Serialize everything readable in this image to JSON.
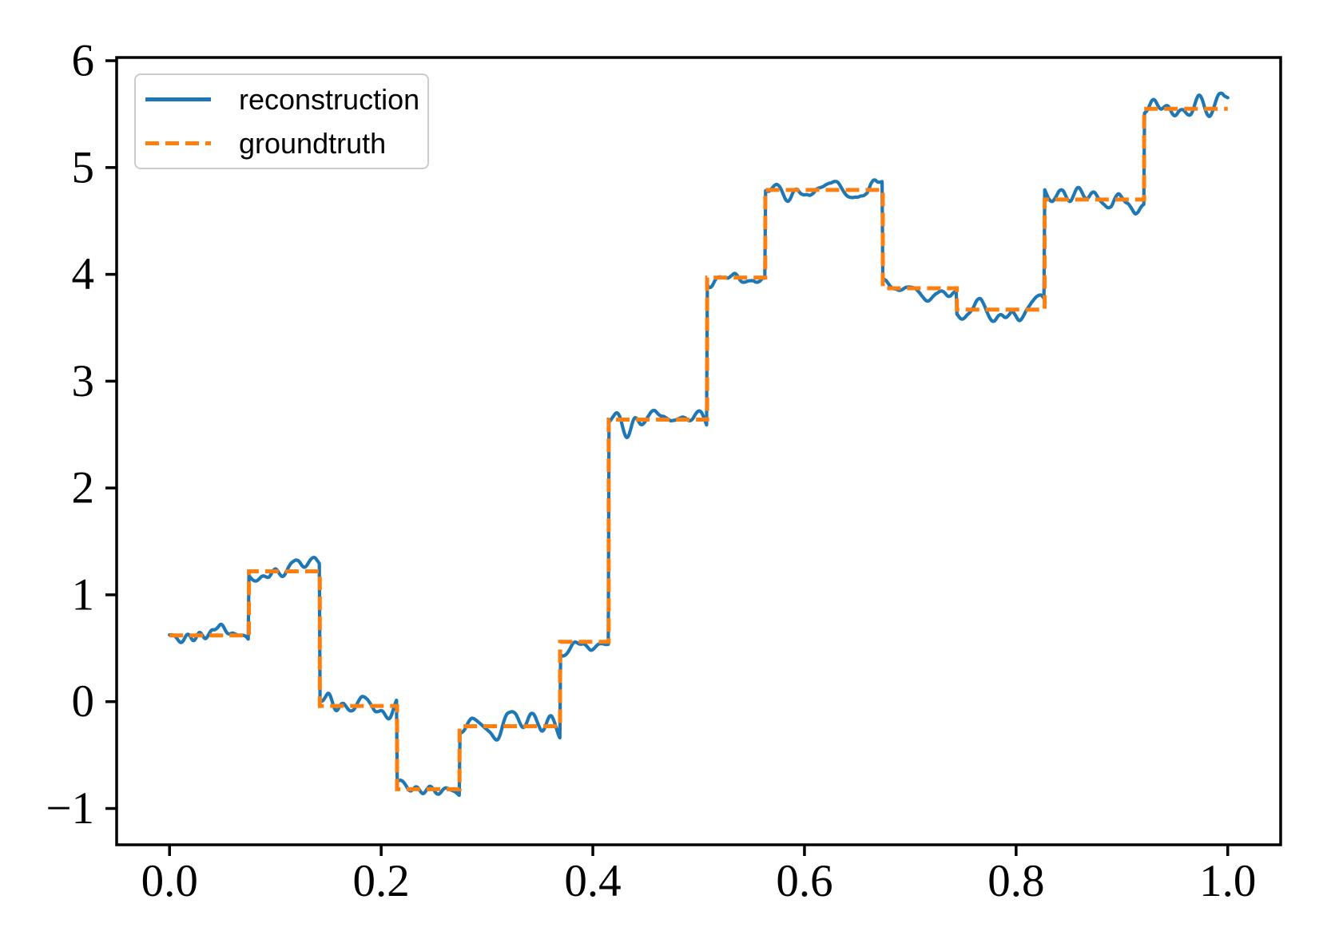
{
  "figure": {
    "background": "#ffffff"
  },
  "chart_data": {
    "type": "line",
    "title": "",
    "xlabel": "",
    "ylabel": "",
    "grid": false,
    "xlim": [
      -0.05,
      1.05
    ],
    "ylim": [
      -1.34,
      6.03
    ],
    "x_ticks": [
      0.0,
      0.2,
      0.4,
      0.6,
      0.8,
      1.0
    ],
    "x_tick_labels": [
      "0.0",
      "0.2",
      "0.4",
      "0.6",
      "0.8",
      "1.0"
    ],
    "y_ticks": [
      -1,
      0,
      1,
      2,
      3,
      4,
      5,
      6
    ],
    "y_tick_labels": [
      "−1",
      "0",
      "1",
      "2",
      "3",
      "4",
      "5",
      "6"
    ],
    "legend": {
      "position": "upper left",
      "entries": [
        "reconstruction",
        "groundtruth"
      ]
    },
    "series": [
      {
        "name": "reconstruction",
        "color": "#1f77b4",
        "line_style": "solid",
        "line_width": 4.2,
        "description": "step signal with small smooth noise superimposed",
        "noise": {
          "seed": 20,
          "std": 0.06,
          "smooth_window": 9,
          "smooth_passes": 3,
          "samples": 1400
        }
      },
      {
        "name": "groundtruth",
        "color": "#ff7f0e",
        "line_style": "dashed",
        "line_width": 5,
        "dash_pattern": [
          17,
          8
        ]
      }
    ],
    "step_segments": [
      {
        "x_start": 0.0,
        "x_end": 0.075,
        "level": 0.62
      },
      {
        "x_start": 0.075,
        "x_end": 0.142,
        "level": 1.22
      },
      {
        "x_start": 0.142,
        "x_end": 0.215,
        "level": -0.04
      },
      {
        "x_start": 0.215,
        "x_end": 0.274,
        "level": -0.82
      },
      {
        "x_start": 0.274,
        "x_end": 0.369,
        "level": -0.23
      },
      {
        "x_start": 0.369,
        "x_end": 0.415,
        "level": 0.56
      },
      {
        "x_start": 0.415,
        "x_end": 0.508,
        "level": 2.64
      },
      {
        "x_start": 0.508,
        "x_end": 0.563,
        "level": 3.97
      },
      {
        "x_start": 0.563,
        "x_end": 0.674,
        "level": 4.79
      },
      {
        "x_start": 0.674,
        "x_end": 0.744,
        "level": 3.87
      },
      {
        "x_start": 0.744,
        "x_end": 0.827,
        "level": 3.67
      },
      {
        "x_start": 0.827,
        "x_end": 0.921,
        "level": 4.7
      },
      {
        "x_start": 0.921,
        "x_end": 1.0,
        "level": 5.55
      }
    ]
  }
}
